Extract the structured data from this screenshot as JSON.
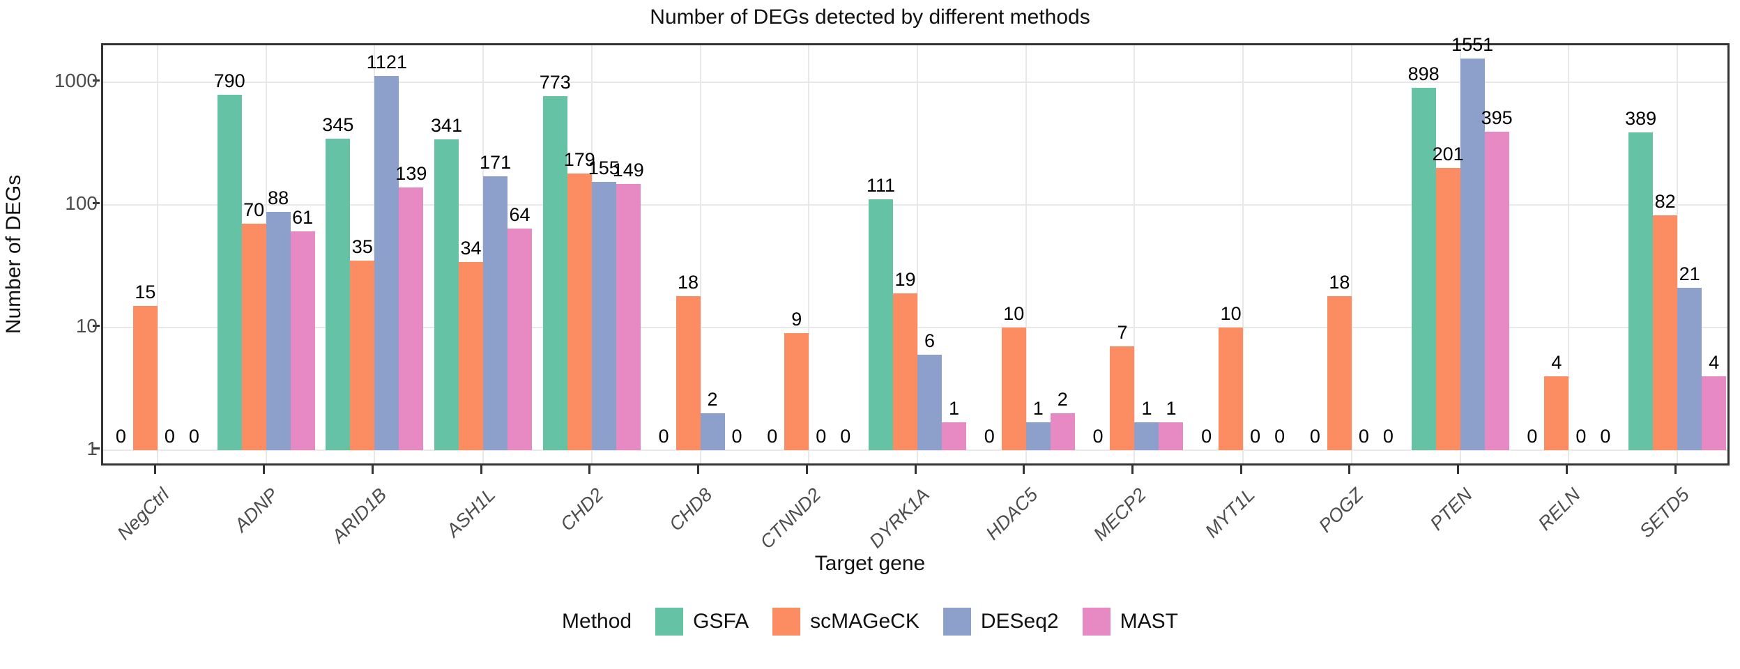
{
  "chart_data": {
    "type": "bar",
    "title": "Number of DEGs detected by different methods",
    "xlabel": "Target gene",
    "ylabel": "Number of DEGs",
    "y_scale": "log10",
    "ylim": [
      1,
      2000
    ],
    "yticks": [
      1,
      10,
      100,
      1000
    ],
    "grid": true,
    "legend_title": "Method",
    "legend_position": "bottom",
    "categories": [
      "NegCtrl",
      "ADNP",
      "ARID1B",
      "ASH1L",
      "CHD2",
      "CHD8",
      "CTNND2",
      "DYRK1A",
      "HDAC5",
      "MECP2",
      "MYT1L",
      "POGZ",
      "PTEN",
      "RELN",
      "SETD5"
    ],
    "series": [
      {
        "name": "GSFA",
        "color": "#66C2A5",
        "values": [
          0,
          790,
          345,
          341,
          773,
          0,
          0,
          111,
          0,
          0,
          0,
          0,
          898,
          0,
          389
        ]
      },
      {
        "name": "scMAGeCK",
        "color": "#FC8D62",
        "values": [
          15,
          70,
          35,
          34,
          179,
          18,
          9,
          19,
          10,
          7,
          10,
          18,
          201,
          4,
          82
        ]
      },
      {
        "name": "DESeq2",
        "color": "#8DA0CB",
        "values": [
          0,
          88,
          1121,
          171,
          155,
          2,
          0,
          6,
          1,
          1,
          0,
          0,
          1551,
          0,
          21
        ]
      },
      {
        "name": "MAST",
        "color": "#E78AC3",
        "values": [
          0,
          61,
          139,
          64,
          149,
          0,
          0,
          1,
          2,
          1,
          0,
          0,
          395,
          0,
          4
        ]
      }
    ]
  }
}
